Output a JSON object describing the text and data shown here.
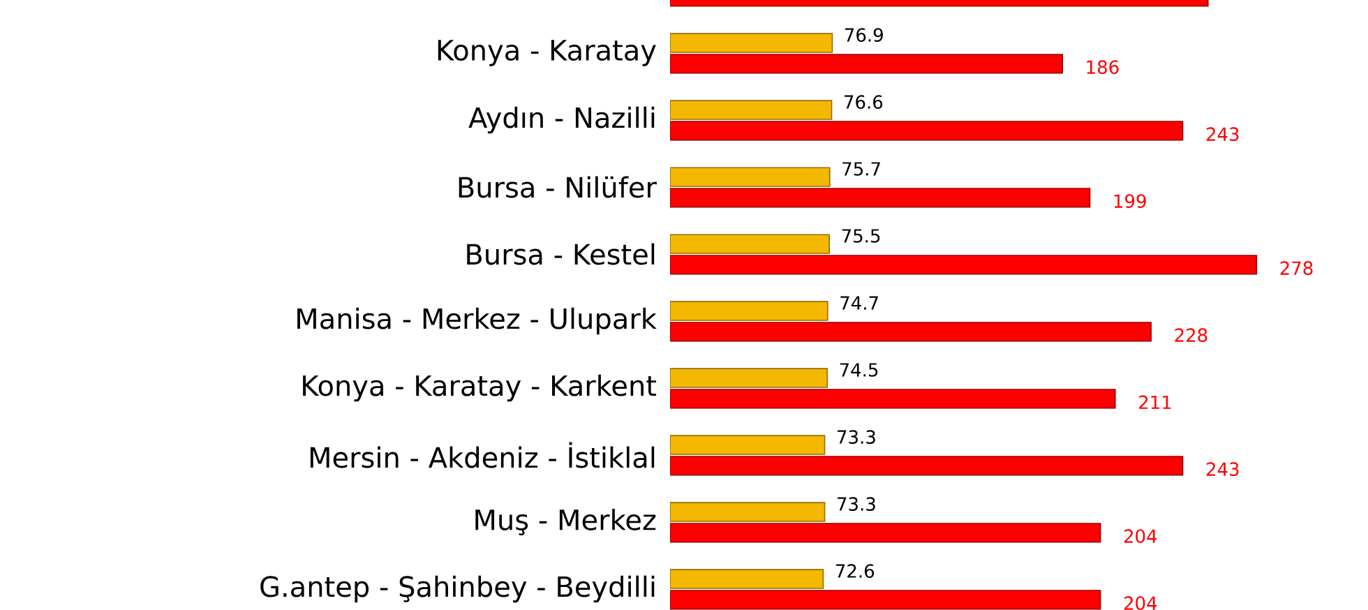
{
  "chart_data": {
    "type": "bar",
    "orientation": "horizontal",
    "categories": [
      null,
      "Konya - Karatay",
      "Aydın - Nazilli",
      "Bursa - Nilüfer",
      "Bursa - Kestel",
      "Manisa - Merkez - Ulupark",
      "Konya - Karatay - Karkent",
      "Mersin - Akdeniz - İstiklal",
      "Muş - Merkez",
      "G.antep - Şahinbey - Beydilli"
    ],
    "series": [
      {
        "color": "#f5b800",
        "values": [
          null,
          76.9,
          76.6,
          75.7,
          75.5,
          74.7,
          74.5,
          73.3,
          73.3,
          72.6
        ],
        "value_labels": [
          null,
          "76.9",
          "76.6",
          "75.7",
          "75.5",
          "74.7",
          "74.5",
          "73.3",
          "73.3",
          "72.6"
        ]
      },
      {
        "color": "#ff0000",
        "values": [
          255,
          186,
          243,
          199,
          278,
          228,
          211,
          243,
          204,
          204
        ],
        "value_labels": [
          null,
          "186",
          "243",
          "199",
          "278",
          "228",
          "211",
          "243",
          "204",
          "204"
        ]
      }
    ]
  }
}
